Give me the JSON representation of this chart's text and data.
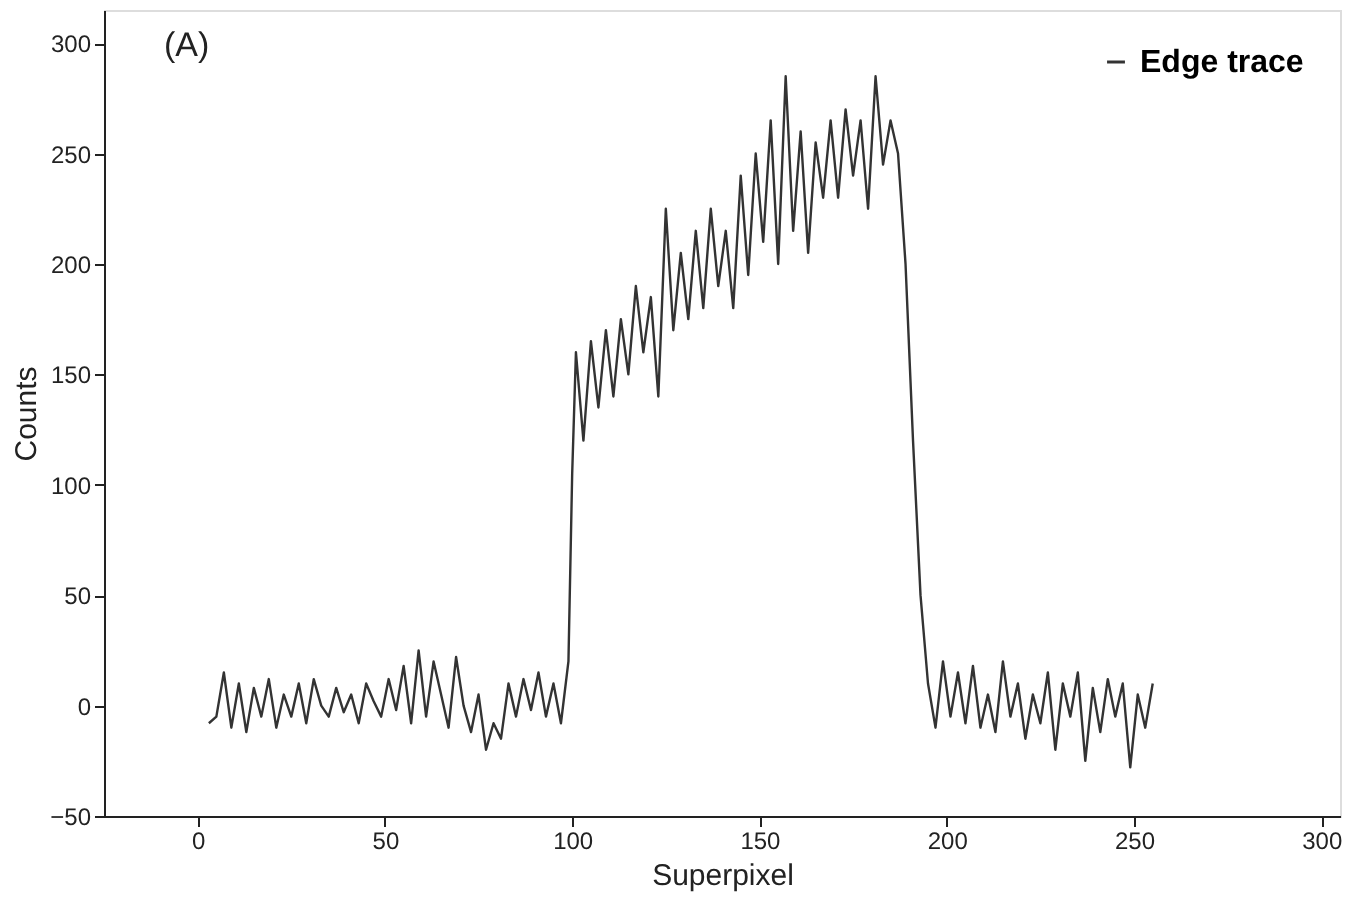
{
  "chart_data": {
    "type": "line",
    "xlabel": "Superpixel",
    "ylabel": "Counts",
    "annotations": [
      "(A)"
    ],
    "xlim": [
      -25,
      305
    ],
    "ylim": [
      -50,
      315
    ],
    "xticks": [
      0,
      50,
      100,
      150,
      200,
      250,
      300
    ],
    "yticks": [
      -50,
      0,
      50,
      100,
      150,
      200,
      250,
      300
    ],
    "grid": false,
    "legend": "top right",
    "marker": "none",
    "line_style": "solid",
    "series": [
      {
        "name": "Edge trace",
        "color": "#333333",
        "x": [
          3,
          5,
          7,
          9,
          11,
          13,
          15,
          17,
          19,
          21,
          23,
          25,
          27,
          29,
          31,
          33,
          35,
          37,
          39,
          41,
          43,
          45,
          47,
          49,
          51,
          53,
          55,
          57,
          59,
          61,
          63,
          65,
          67,
          69,
          71,
          73,
          75,
          77,
          79,
          81,
          83,
          85,
          87,
          89,
          91,
          93,
          95,
          97,
          99,
          100,
          101,
          103,
          105,
          107,
          109,
          111,
          113,
          115,
          117,
          119,
          121,
          123,
          125,
          127,
          129,
          131,
          133,
          135,
          137,
          139,
          141,
          143,
          145,
          147,
          149,
          151,
          153,
          155,
          157,
          159,
          161,
          163,
          165,
          167,
          169,
          171,
          173,
          175,
          177,
          179,
          181,
          183,
          185,
          187,
          189,
          191,
          193,
          195,
          197,
          199,
          201,
          203,
          205,
          207,
          209,
          211,
          213,
          215,
          217,
          219,
          221,
          223,
          225,
          227,
          229,
          231,
          233,
          235,
          237,
          239,
          241,
          243,
          245,
          247,
          249,
          251,
          253,
          255
        ],
        "values": [
          -8,
          -5,
          15,
          -10,
          10,
          -12,
          8,
          -5,
          12,
          -10,
          5,
          -5,
          10,
          -8,
          12,
          0,
          -5,
          8,
          -3,
          5,
          -8,
          10,
          2,
          -5,
          12,
          -2,
          18,
          -8,
          25,
          -5,
          20,
          5,
          -10,
          22,
          0,
          -12,
          5,
          -20,
          -8,
          -15,
          10,
          -5,
          12,
          -2,
          15,
          -5,
          10,
          -8,
          20,
          105,
          160,
          120,
          165,
          135,
          170,
          140,
          175,
          150,
          190,
          160,
          185,
          140,
          225,
          170,
          205,
          175,
          215,
          180,
          225,
          190,
          215,
          180,
          240,
          195,
          250,
          210,
          265,
          200,
          285,
          215,
          260,
          205,
          255,
          230,
          265,
          230,
          270,
          240,
          265,
          225,
          285,
          245,
          265,
          250,
          200,
          120,
          50,
          10,
          -10,
          20,
          -5,
          15,
          -8,
          18,
          -10,
          5,
          -12,
          20,
          -5,
          10,
          -15,
          5,
          -8,
          15,
          -20,
          10,
          -5,
          15,
          -25,
          8,
          -12,
          12,
          -5,
          10,
          -28,
          5,
          -10,
          10
        ]
      }
    ]
  }
}
